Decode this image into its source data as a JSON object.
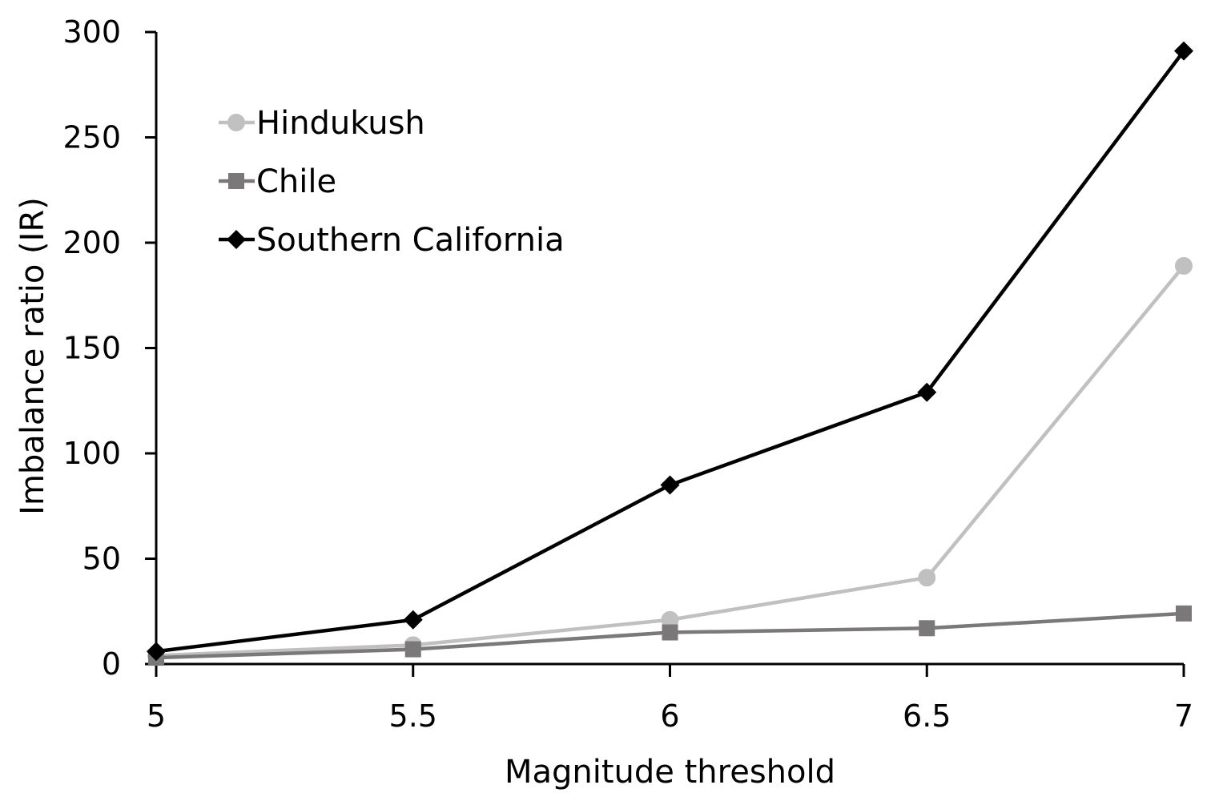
{
  "chart_data": {
    "type": "line",
    "title": "",
    "xlabel": "Magnitude threshold",
    "ylabel": "Imbalance ratio (IR)",
    "x": [
      5,
      5.5,
      6,
      6.5,
      7
    ],
    "x_tick_labels": [
      "5",
      "5.5",
      "6",
      "6.5",
      "7"
    ],
    "y_ticks": [
      0,
      50,
      100,
      150,
      200,
      250,
      300
    ],
    "y_tick_labels": [
      "0",
      "50",
      "100",
      "150",
      "200",
      "250",
      "300"
    ],
    "xlim": [
      5,
      7
    ],
    "ylim": [
      0,
      300
    ],
    "grid": false,
    "legend_position": "top-left",
    "series": [
      {
        "name": "Hindukush",
        "values": [
          4,
          9,
          21,
          41,
          189
        ],
        "color": "#c0c0c0",
        "marker": "circle"
      },
      {
        "name": "Chile",
        "values": [
          3,
          7,
          15,
          17,
          24
        ],
        "color": "#7a7878",
        "marker": "square"
      },
      {
        "name": "Southern California",
        "values": [
          6,
          21,
          85,
          129,
          291
        ],
        "color": "#000000",
        "marker": "diamond"
      }
    ]
  }
}
